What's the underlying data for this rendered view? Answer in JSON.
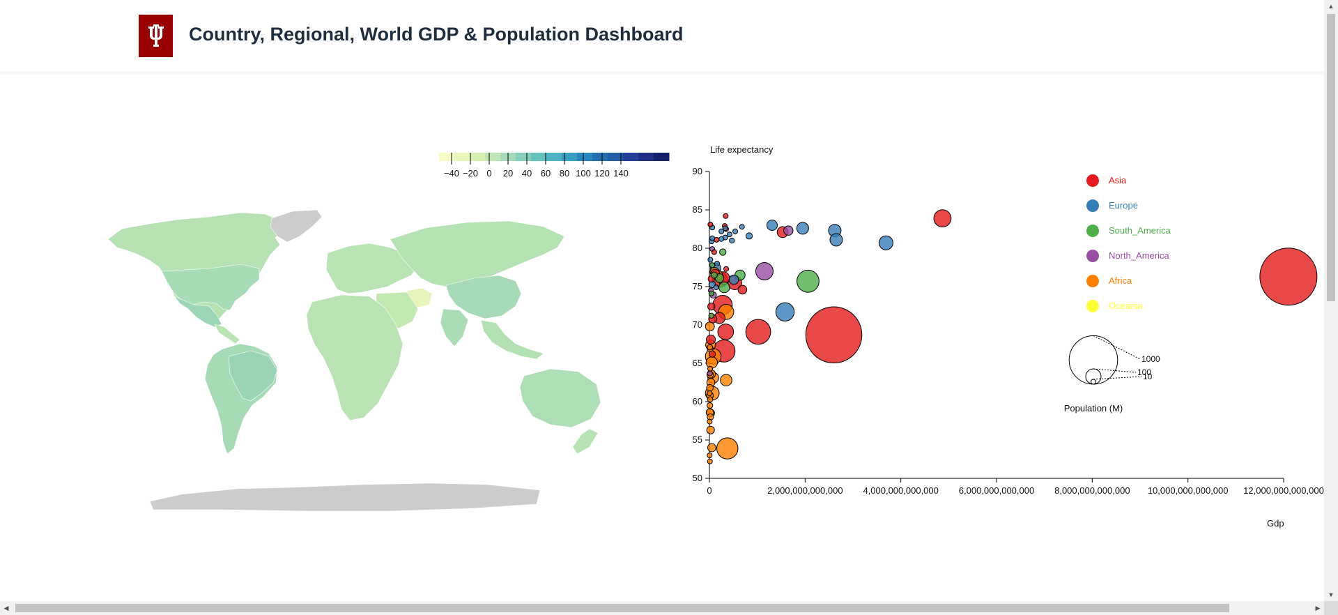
{
  "header": {
    "title": "Country, Regional, World GDP & Population Dashboard",
    "logo_text": "IU",
    "logo_color": "#990000"
  },
  "map": {
    "legend_ticks": [
      "−40",
      "−20",
      "0",
      "20",
      "40",
      "60",
      "80",
      "100",
      "120",
      "140"
    ],
    "colors": [
      "#f7fcc4",
      "#e9f7bd",
      "#d6efb3",
      "#c0e6b5",
      "#a4dab8",
      "#86cfbb",
      "#66c2bf",
      "#4cb3c2",
      "#359fc1",
      "#2887bc",
      "#2170b0",
      "#225ea8",
      "#243f99",
      "#1f2f85",
      "#14206b"
    ],
    "nodata_color": "#cccccc"
  },
  "chart_data": {
    "type": "scatter",
    "xlabel": "Gdp",
    "ylabel": "Life expectancy",
    "xlim": [
      0,
      12000000000000
    ],
    "ylim": [
      50,
      90
    ],
    "x_ticks": [
      "0",
      "2,000,000,000,000",
      "4,000,000,000,000",
      "6,000,000,000,000",
      "8,000,000,000,000",
      "10,000,000,000,000",
      "12,000,000,000,000"
    ],
    "y_ticks": [
      "50",
      "55",
      "60",
      "65",
      "70",
      "75",
      "80",
      "85",
      "90"
    ],
    "series": [
      {
        "name": "Asia",
        "color": "#e41a1c",
        "points": [
          [
            12100000000000,
            76.3,
            1390
          ],
          [
            2600000000000,
            68.7,
            1340
          ],
          [
            4870000000000,
            83.9,
            127
          ],
          [
            1020000000000,
            69.1,
            264
          ],
          [
            305000000000,
            66.6,
            208
          ],
          [
            275000000000,
            72.6,
            160
          ],
          [
            1530000000000,
            82.1,
            51
          ],
          [
            530000000000,
            75.5,
            82
          ],
          [
            690000000000,
            74.6,
            33
          ],
          [
            340000000000,
            69.1,
            106
          ],
          [
            320000000000,
            82.9,
            5.7
          ],
          [
            340000000000,
            84.2,
            7.4
          ],
          [
            220000000000,
            75.9,
            96
          ],
          [
            210000000000,
            70.9,
            53
          ],
          [
            120000000000,
            76.7,
            32
          ],
          [
            70000000000,
            70.8,
            29
          ],
          [
            40000000000,
            76.0,
            18
          ],
          [
            60000000000,
            66.2,
            17
          ],
          [
            150000000000,
            81.1,
            9
          ],
          [
            350000000000,
            82.5,
            9
          ],
          [
            100000000000,
            79.5,
            4.5
          ],
          [
            20000000000,
            83.1,
            0.6
          ],
          [
            40000000000,
            72.4,
            22
          ],
          [
            30000000000,
            68.1,
            35
          ],
          [
            290000000000,
            76.1,
            69
          ],
          [
            350000000000,
            77.3,
            1
          ]
        ]
      },
      {
        "name": "Europe",
        "color": "#377eb8",
        "points": [
          [
            3690000000000,
            80.7,
            83
          ],
          [
            2620000000000,
            82.3,
            67
          ],
          [
            2650000000000,
            81.1,
            66
          ],
          [
            1950000000000,
            82.6,
            60
          ],
          [
            1580000000000,
            71.7,
            144
          ],
          [
            1310000000000,
            83.0,
            47
          ],
          [
            830000000000,
            81.6,
            17
          ],
          [
            540000000000,
            82.2,
            10
          ],
          [
            470000000000,
            81.0,
            11
          ],
          [
            510000000000,
            75.9,
            38
          ],
          [
            420000000000,
            81.8,
            9
          ],
          [
            680000000000,
            82.8,
            8.5
          ],
          [
            330000000000,
            81.4,
            5.8
          ],
          [
            250000000000,
            82.2,
            5.3
          ],
          [
            250000000000,
            81.2,
            5.5
          ],
          [
            330000000000,
            82.6,
            4.8
          ],
          [
            60000000000,
            82.7,
            8
          ],
          [
            130000000000,
            77.4,
            45
          ],
          [
            140000000000,
            74.9,
            9.7
          ],
          [
            160000000000,
            78.0,
            3
          ],
          [
            60000000000,
            75.3,
            19
          ],
          [
            20000000000,
            78.5,
            2.1
          ],
          [
            60000000000,
            81.3,
            0.6
          ],
          [
            45000000000,
            80.9,
            10.3
          ]
        ]
      },
      {
        "name": "South_America",
        "color": "#4daf4a",
        "points": [
          [
            2060000000000,
            75.7,
            209
          ],
          [
            640000000000,
            76.5,
            44
          ],
          [
            310000000000,
            74.9,
            49
          ],
          [
            280000000000,
            79.5,
            18
          ],
          [
            210000000000,
            76.1,
            32
          ],
          [
            100000000000,
            76.5,
            17
          ],
          [
            40000000000,
            71.2,
            11
          ],
          [
            60000000000,
            77.8,
            3.4
          ],
          [
            40000000000,
            74.1,
            7
          ]
        ]
      },
      {
        "name": "North_America",
        "color": "#984ea3",
        "points": [
          [
            1150000000000,
            77.0,
            129
          ],
          [
            1650000000000,
            82.3,
            37
          ],
          [
            80000000000,
            73.9,
            17
          ],
          [
            60000000000,
            79.9,
            5
          ],
          [
            30000000000,
            74.5,
            9.2
          ],
          [
            10000000000,
            63.7,
            11
          ]
        ]
      },
      {
        "name": "Africa",
        "color": "#ff7f00",
        "points": [
          [
            375000000000,
            53.9,
            191
          ],
          [
            350000000000,
            71.7,
            98
          ],
          [
            350000000000,
            62.8,
            57
          ],
          [
            170000000000,
            76.5,
            41
          ],
          [
            110000000000,
            76.9,
            36
          ],
          [
            80000000000,
            65.9,
            105
          ],
          [
            80000000000,
            63.1,
            50
          ],
          [
            50000000000,
            65.1,
            55
          ],
          [
            60000000000,
            61.1,
            81
          ],
          [
            50000000000,
            54.0,
            29
          ],
          [
            30000000000,
            62.5,
            28
          ],
          [
            40000000000,
            63.6,
            29
          ],
          [
            30000000000,
            58.5,
            24
          ],
          [
            10000000000,
            61.8,
            19
          ],
          [
            25000000000,
            67.4,
            42
          ],
          [
            15000000000,
            63.5,
            18
          ],
          [
            15000000000,
            60.3,
            12
          ],
          [
            10000000000,
            58.6,
            24
          ],
          [
            10000000000,
            59.5,
            14
          ],
          [
            25000000000,
            56.3,
            25
          ],
          [
            10000000000,
            52.2,
            4.7
          ],
          [
            20000000000,
            58.0,
            17
          ],
          [
            10000000000,
            60.8,
            20
          ],
          [
            10000000000,
            67.1,
            12
          ],
          [
            5000000000,
            57.4,
            2
          ],
          [
            5000000000,
            53.0,
            2.5
          ],
          [
            15000000000,
            64.3,
            7.8
          ],
          [
            5000000000,
            61.1,
            1.5
          ],
          [
            10000000000,
            69.8,
            34
          ],
          [
            15000000000,
            66.9,
            15
          ]
        ]
      },
      {
        "name": "Oceania",
        "color": "#ffff33",
        "points": []
      }
    ],
    "size_legend": {
      "title": "Population (M)",
      "values": [
        1000,
        100,
        10
      ]
    }
  }
}
